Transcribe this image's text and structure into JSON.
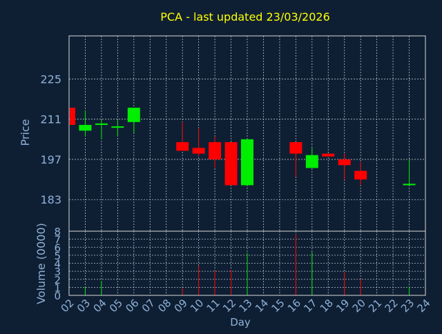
{
  "chart_data": {
    "type": "candlestick",
    "title": "PCA - last updated 23/03/2026",
    "xlabel": "Day",
    "ylabel": "Price",
    "volume_label": "Volume (0000)",
    "x_ticks": [
      "02",
      "03",
      "04",
      "05",
      "06",
      "07",
      "08",
      "09",
      "10",
      "11",
      "12",
      "13",
      "14",
      "15",
      "16",
      "17",
      "18",
      "19",
      "20",
      "21",
      "22",
      "23",
      "24"
    ],
    "price_ticks": [
      183,
      197,
      211,
      225
    ],
    "price_range": [
      172,
      240
    ],
    "volume_ticks": [
      0,
      1,
      2,
      3,
      4,
      5,
      6,
      7,
      8
    ],
    "volume_range": [
      0,
      8
    ],
    "grid": true,
    "colors": {
      "background": "#0f1f33",
      "plot_border": "#d8d8d8",
      "grid": "#b8c0cc",
      "axis_text": "#8fb2d9",
      "title": "#ffff00",
      "up": "#00ee00",
      "down": "#ff0000"
    },
    "candles": [
      {
        "day": "02",
        "open": 215,
        "close": 209,
        "high": 215,
        "low": 209
      },
      {
        "day": "03",
        "open": 207,
        "close": 209,
        "high": 214,
        "low": 205
      },
      {
        "day": "04",
        "open": 209,
        "close": 209.5,
        "high": 211,
        "low": 204
      },
      {
        "day": "05",
        "open": 208,
        "close": 208.5,
        "high": 211,
        "low": 205
      },
      {
        "day": "06",
        "open": 210,
        "close": 215,
        "high": 215,
        "low": 206
      },
      {
        "day": "09",
        "open": 203,
        "close": 200,
        "high": 210,
        "low": 200
      },
      {
        "day": "10",
        "open": 201,
        "close": 199,
        "high": 208,
        "low": 198
      },
      {
        "day": "11",
        "open": 203,
        "close": 197,
        "high": 205,
        "low": 194
      },
      {
        "day": "12",
        "open": 203,
        "close": 188,
        "high": 203,
        "low": 188
      },
      {
        "day": "13",
        "open": 188,
        "close": 204,
        "high": 204,
        "low": 188
      },
      {
        "day": "16",
        "open": 203,
        "close": 199,
        "high": 203,
        "low": 191
      },
      {
        "day": "17",
        "open": 194,
        "close": 198.5,
        "high": 201,
        "low": 194
      },
      {
        "day": "18",
        "open": 199,
        "close": 198,
        "high": 199,
        "low": 198
      },
      {
        "day": "19",
        "open": 197,
        "close": 195,
        "high": 199,
        "low": 190
      },
      {
        "day": "20",
        "open": 193,
        "close": 190,
        "high": 196,
        "low": 188
      },
      {
        "day": "23",
        "open": 188,
        "close": 188.5,
        "high": 197,
        "low": 188
      }
    ],
    "volume": [
      {
        "day": "03",
        "value": 1.1,
        "dir": "up"
      },
      {
        "day": "04",
        "value": 1.8,
        "dir": "up"
      },
      {
        "day": "09",
        "value": 0.9,
        "dir": "down"
      },
      {
        "day": "10",
        "value": 3.7,
        "dir": "down"
      },
      {
        "day": "11",
        "value": 3.1,
        "dir": "down"
      },
      {
        "day": "12",
        "value": 3.2,
        "dir": "down"
      },
      {
        "day": "13",
        "value": 5.3,
        "dir": "up"
      },
      {
        "day": "16",
        "value": 7.6,
        "dir": "down"
      },
      {
        "day": "17",
        "value": 5.4,
        "dir": "up"
      },
      {
        "day": "19",
        "value": 2.9,
        "dir": "down"
      },
      {
        "day": "20",
        "value": 2.0,
        "dir": "down"
      },
      {
        "day": "23",
        "value": 1.1,
        "dir": "up"
      }
    ]
  }
}
